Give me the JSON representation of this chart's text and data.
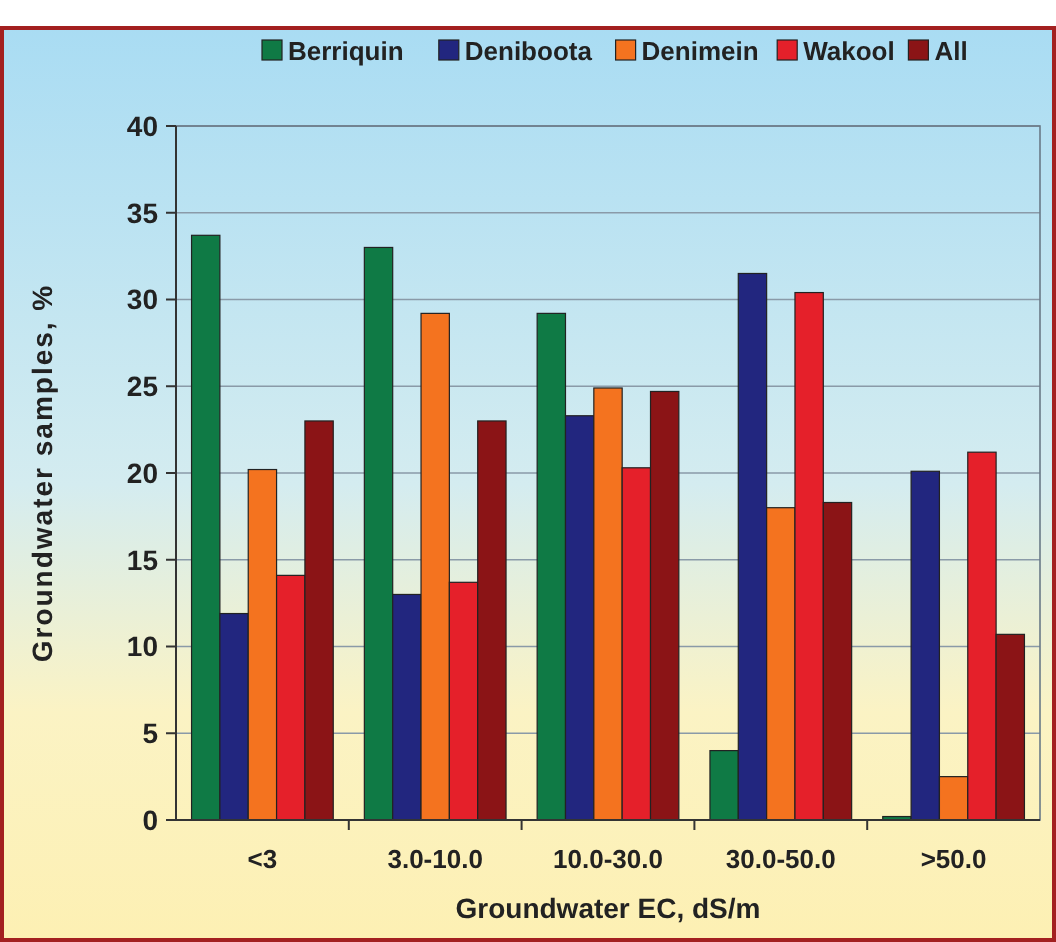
{
  "chart_data": {
    "type": "bar",
    "xlabel": "Groundwater EC, dS/m",
    "ylabel": "Groundwater samples, %",
    "categories": [
      "<3",
      "3.0-10.0",
      "10.0-30.0",
      "30.0-50.0",
      ">50.0"
    ],
    "series": [
      {
        "name": "Berriquin",
        "color": "#0f7a45",
        "values": [
          33.7,
          33.0,
          29.2,
          4.0,
          0.2
        ]
      },
      {
        "name": "Deniboota",
        "color": "#22267f",
        "values": [
          11.9,
          13.0,
          23.3,
          31.5,
          20.1
        ]
      },
      {
        "name": "Denimein",
        "color": "#f4731f",
        "values": [
          20.2,
          29.2,
          24.9,
          18.0,
          2.5
        ]
      },
      {
        "name": "Wakool",
        "color": "#e5202a",
        "values": [
          14.1,
          13.7,
          20.3,
          30.4,
          21.2
        ]
      },
      {
        "name": "All",
        "color": "#8b1416",
        "values": [
          23.0,
          23.0,
          24.7,
          18.3,
          10.7
        ]
      }
    ],
    "ylim": [
      0,
      40
    ],
    "yticks": [
      0,
      5,
      10,
      15,
      20,
      25,
      30,
      35,
      40
    ],
    "grid": "y",
    "legend": "top"
  }
}
